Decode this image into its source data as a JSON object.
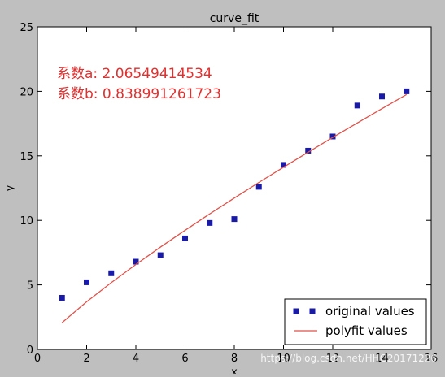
{
  "chart_data": {
    "type": "scatter",
    "title": "curve_fit",
    "xlabel": "x",
    "ylabel": "y",
    "xlim": [
      0,
      16
    ],
    "ylim": [
      0,
      25
    ],
    "x_ticks": [
      0,
      2,
      4,
      6,
      8,
      10,
      12,
      14,
      16
    ],
    "y_ticks": [
      0,
      5,
      10,
      15,
      20,
      25
    ],
    "grid": false,
    "legend_position": "lower-right",
    "annotations": [
      "系数a: 2.06549414534",
      "系数b: 0.838991261723"
    ],
    "series": [
      {
        "name": "original values",
        "kind": "scatter",
        "marker": "square",
        "color": "#1a1aa8",
        "x": [
          1,
          2,
          3,
          4,
          5,
          6,
          7,
          8,
          9,
          10,
          11,
          12,
          13,
          14,
          15
        ],
        "y": [
          4.0,
          5.2,
          5.9,
          6.8,
          7.3,
          8.6,
          9.8,
          10.1,
          12.6,
          14.3,
          15.4,
          16.5,
          18.9,
          19.6,
          20.0
        ]
      },
      {
        "name": "polyfit values",
        "kind": "line",
        "color": "#e0524a",
        "x": [
          1,
          2,
          3,
          4,
          5,
          6,
          7,
          8,
          9,
          10,
          11,
          12,
          13,
          14,
          15
        ],
        "y": [
          2.07,
          3.69,
          5.17,
          6.58,
          7.93,
          9.23,
          10.5,
          11.73,
          12.94,
          14.12,
          15.28,
          16.43,
          17.55,
          18.66,
          19.75
        ]
      }
    ],
    "annotation_color": "#e03030",
    "axis_color": "#000000",
    "plot_background": "#ffffff",
    "figure_background": "#bfbfbf"
  },
  "watermark": "https://blog.csdn.net/HHG20171226"
}
